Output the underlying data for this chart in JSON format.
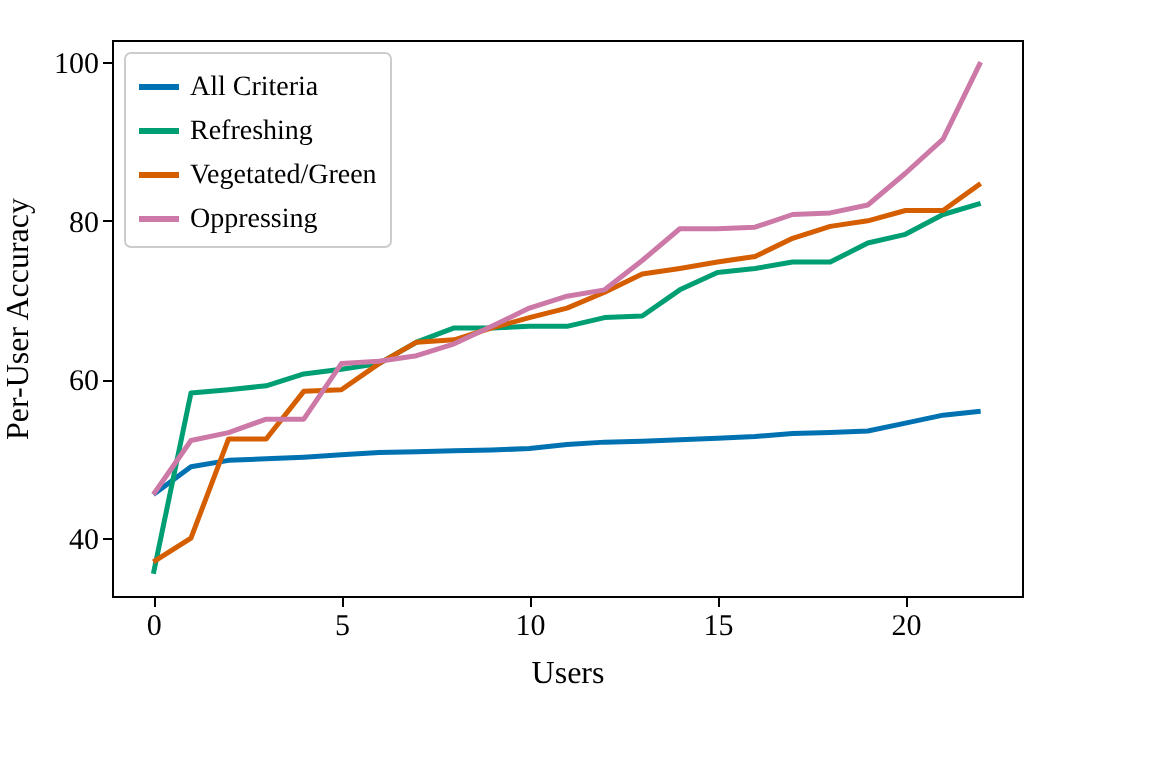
{
  "chart_data": {
    "type": "line",
    "xlabel": "Users",
    "ylabel": "Per-User Accuracy",
    "x": [
      0,
      1,
      2,
      3,
      4,
      5,
      6,
      7,
      8,
      9,
      10,
      11,
      12,
      13,
      14,
      15,
      16,
      17,
      18,
      19,
      20,
      21,
      22
    ],
    "series": [
      {
        "name": "All Criteria",
        "color": "#0072b2",
        "values": [
          45.5,
          49,
          49.8,
          50,
          50.2,
          50.5,
          50.8,
          50.9,
          51,
          51.1,
          51.3,
          51.8,
          52.1,
          52.2,
          52.4,
          52.6,
          52.8,
          53.2,
          53.3,
          53.5,
          54.5,
          55.5,
          56
        ]
      },
      {
        "name": "Refreshing",
        "color": "#009e73",
        "values": [
          35.5,
          58.3,
          58.7,
          59.2,
          60.7,
          61.3,
          62,
          64.7,
          66.5,
          66.5,
          66.7,
          66.7,
          67.8,
          68,
          71.3,
          73.5,
          74,
          74.8,
          74.8,
          77.2,
          78.3,
          80.8,
          82.2
        ]
      },
      {
        "name": "Vegetated/Green",
        "color": "#d55e00",
        "values": [
          37,
          40,
          52.5,
          52.5,
          58.5,
          58.7,
          62,
          64.7,
          65,
          66.5,
          67.8,
          69,
          71,
          73.3,
          74,
          74.8,
          75.5,
          77.8,
          79.3,
          80,
          81.3,
          81.3,
          84.7
        ]
      },
      {
        "name": "Oppressing",
        "color": "#cc79a7",
        "values": [
          45.5,
          52.3,
          53.3,
          55,
          55,
          62,
          62.3,
          63,
          64.5,
          66.7,
          69,
          70.5,
          71.3,
          75,
          79,
          79,
          79.2,
          80.8,
          81,
          82,
          86,
          90.3,
          100
        ]
      }
    ],
    "xlim": [
      -1.1,
      23.1
    ],
    "ylim": [
      32.7,
      102.8
    ],
    "xticks": [
      0,
      5,
      10,
      15,
      20
    ],
    "yticks": [
      40,
      60,
      80,
      100
    ],
    "grid": false,
    "legend": "top left",
    "line_style": "solid",
    "marker": "none"
  }
}
